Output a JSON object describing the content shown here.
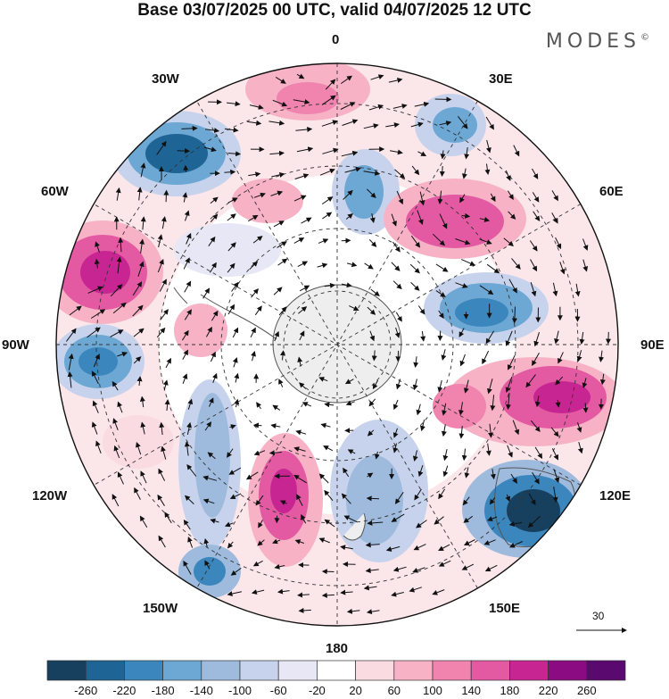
{
  "title": "Base 03/07/2025 00 UTC, valid 04/07/2025 12 UTC",
  "logo": "MODES",
  "logo_mark": "©",
  "lon_labels": {
    "l0": "0",
    "l30e": "30E",
    "l60e": "60E",
    "l90e": "90E",
    "l120e": "120E",
    "l150e": "150E",
    "l180": "180",
    "l150w": "150W",
    "l120w": "120W",
    "l90w": "90W",
    "l60w": "60W",
    "l30w": "30W"
  },
  "reference_vector": "30",
  "colorbar": {
    "ticks": [
      "-260",
      "-220",
      "-180",
      "-140",
      "-100",
      "-60",
      "-20",
      "20",
      "60",
      "100",
      "140",
      "180",
      "220",
      "260"
    ],
    "colors": [
      "#17405f",
      "#1e6494",
      "#3a86bd",
      "#6da7d3",
      "#9ebbde",
      "#c7d3ec",
      "#e7e7f5",
      "#ffffff",
      "#fbdbe2",
      "#f7b2c6",
      "#f084ae",
      "#e35aa3",
      "#c72592",
      "#8b0c82",
      "#5a0a6e"
    ]
  }
}
